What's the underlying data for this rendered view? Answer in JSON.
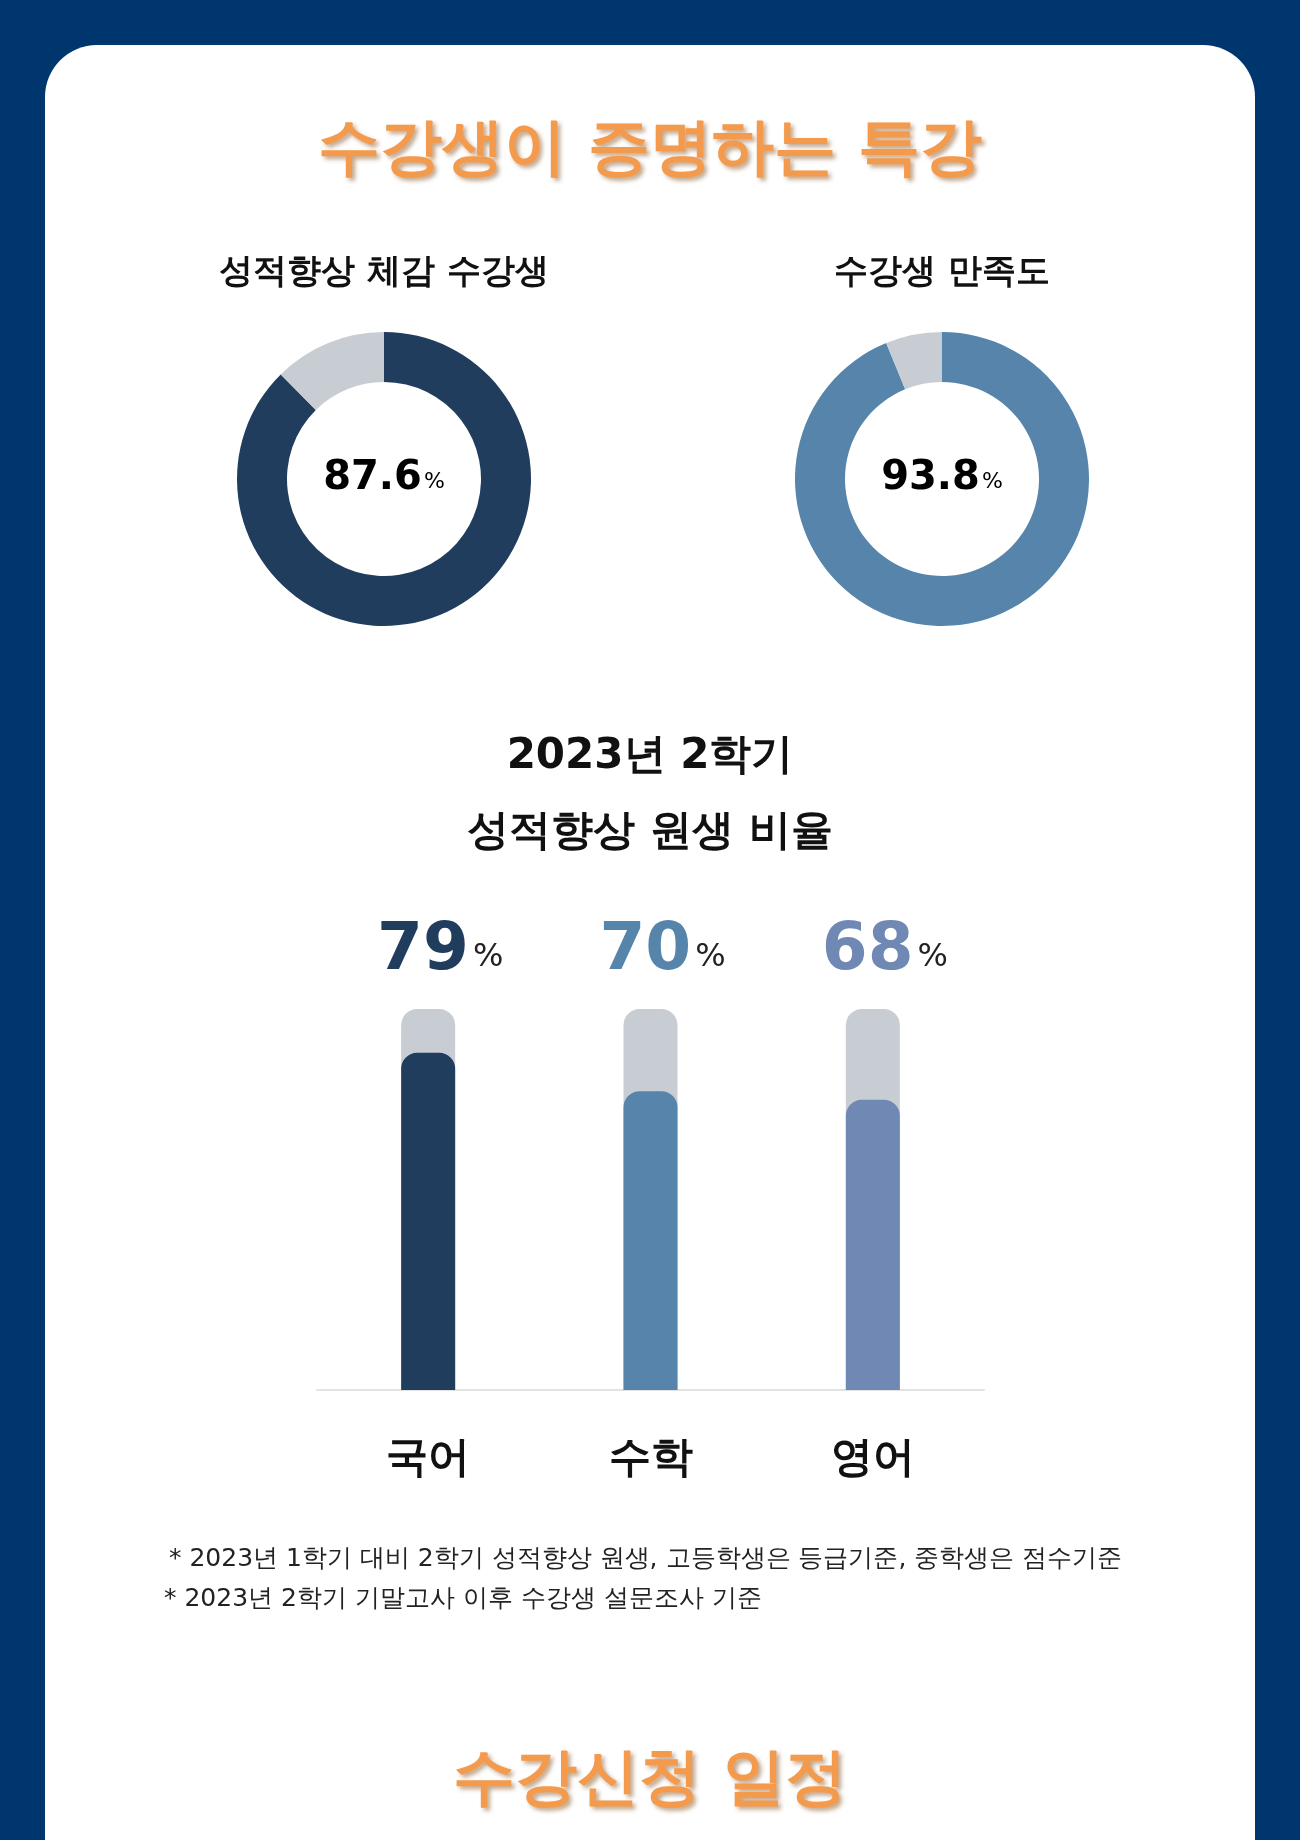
{
  "chart_data": [
    {
      "type": "other",
      "title": "수강생이 증명하는 특강"
    },
    {
      "type": "donut",
      "title": "성적향상 체감 수강생",
      "categories": [
        null,
        null
      ],
      "values": [
        87.6,
        12.4
      ],
      "colors": [
        "#213d5e",
        "#c8ccd3"
      ],
      "value_labels": [
        "87.6%",
        null
      ]
    },
    {
      "type": "donut",
      "title": "수강생 만족도",
      "categories": [
        null,
        null
      ],
      "values": [
        93.8,
        6.2
      ],
      "colors": [
        "#5784aa",
        "#c8ccd3"
      ],
      "value_labels": [
        "93.8%",
        null
      ]
    },
    {
      "type": "bar",
      "title": "2023년 2학기\n성적향상 원생 비율",
      "categories": [
        "국어",
        "수학",
        "영어"
      ],
      "values": [
        79,
        70,
        68
      ],
      "colors": [
        "#213d5e",
        "#5784aa",
        "#6f88b4"
      ],
      "value_labels": [
        "79%",
        "70%",
        "68%"
      ],
      "annotations": [
        "* 2023년 1학기 대비 2학기 성적향상 원생, 고등학생은 등급기준, 중학생은 점수기준",
        "* 2023년 2학기 기말고사 이후 수강생 설문조사 기준"
      ]
    },
    {
      "type": "other",
      "title": "수강신청 일정"
    }
  ]
}
